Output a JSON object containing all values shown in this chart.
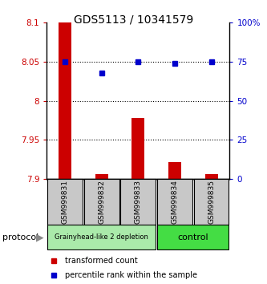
{
  "title": "GDS5113 / 10341579",
  "samples": [
    "GSM999831",
    "GSM999832",
    "GSM999833",
    "GSM999834",
    "GSM999835"
  ],
  "bar_values": [
    8.1,
    7.906,
    7.978,
    7.922,
    7.906
  ],
  "bar_base": 7.9,
  "dot_values": [
    75,
    68,
    75,
    74,
    75
  ],
  "ylim_left": [
    7.9,
    8.1
  ],
  "ylim_right": [
    0,
    100
  ],
  "yticks_left": [
    7.9,
    7.95,
    8.0,
    8.05,
    8.1
  ],
  "ytick_labels_left": [
    "7.9",
    "7.95",
    "8",
    "8.05",
    "8.1"
  ],
  "yticks_right": [
    0,
    25,
    50,
    75,
    100
  ],
  "ytick_labels_right": [
    "0",
    "25",
    "50",
    "75",
    "100%"
  ],
  "bar_color": "#cc0000",
  "dot_color": "#0000cc",
  "left_color": "#cc0000",
  "right_color": "#0000cc",
  "group1_label": "Grainyhead-like 2 depletion",
  "group2_label": "control",
  "group1_color": "#aaeaaa",
  "group2_color": "#44dd44",
  "group1_indices": [
    0,
    1,
    2
  ],
  "group2_indices": [
    3,
    4
  ],
  "protocol_label": "protocol",
  "legend_bar_label": "transformed count",
  "legend_dot_label": "percentile rank within the sample",
  "sample_box_color": "#c8c8c8",
  "bar_width": 0.35
}
